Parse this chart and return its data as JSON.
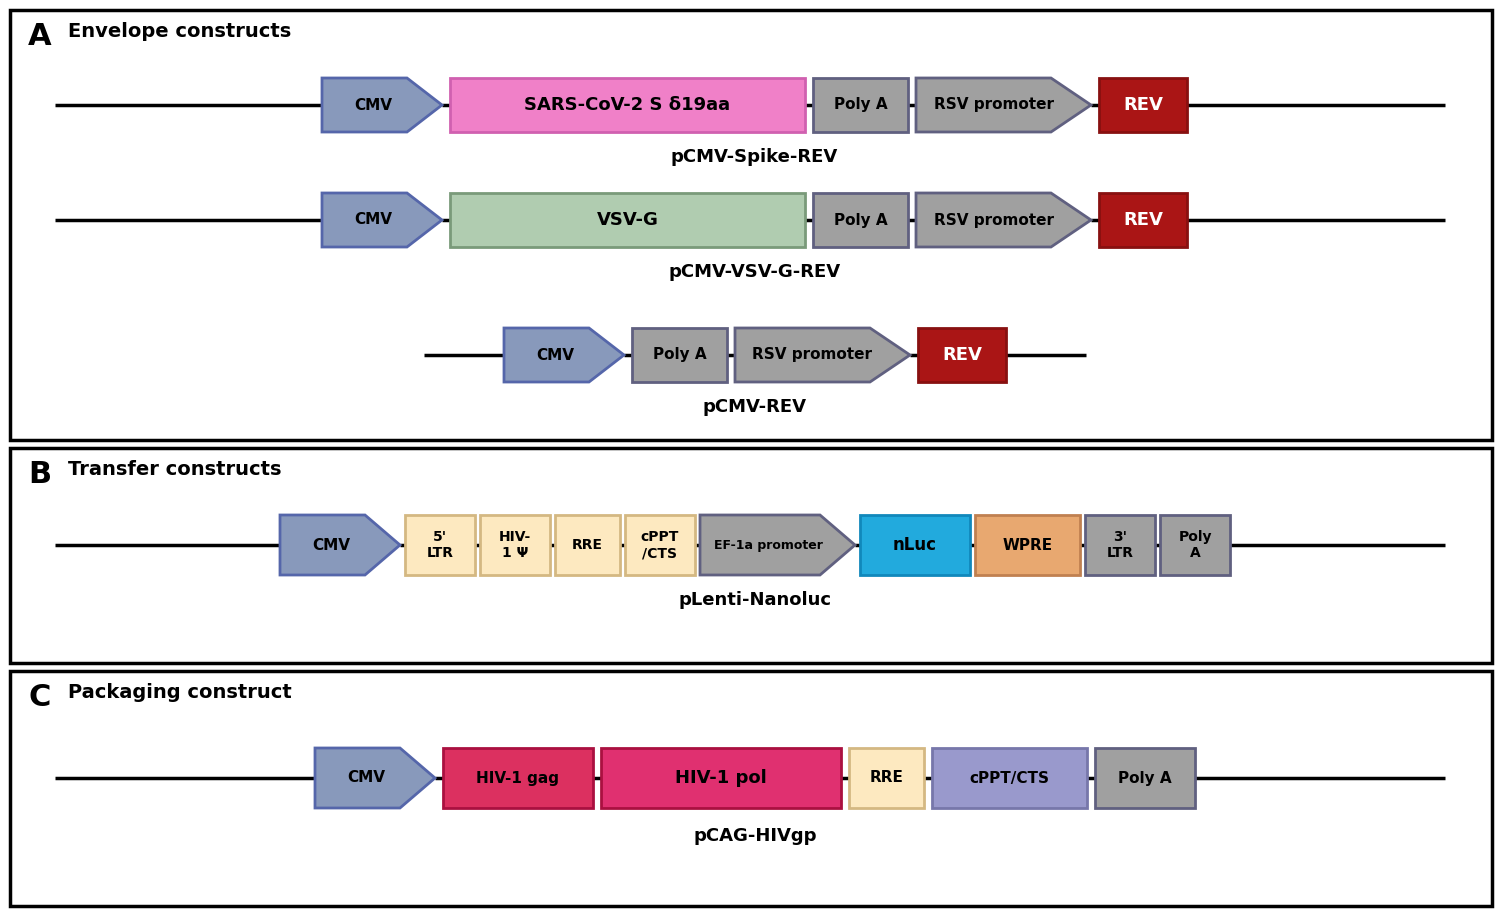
{
  "colors": {
    "gray_box": "#a0a0a0",
    "gray_border": "#606080",
    "cmv_arrow_fill": "#8899bb",
    "cmv_arrow_border": "#5566aa",
    "pink": "#f080c8",
    "pink_border": "#d060b0",
    "green": "#b0ccb0",
    "green_border": "#7a9a7a",
    "dark_red": "#aa1515",
    "dark_red_border": "#881010",
    "light_yellow": "#fde9c0",
    "light_yellow_border": "#d4b882",
    "cyan": "#22aadd",
    "cyan_border": "#1188bb",
    "orange": "#e8a870",
    "orange_border": "#c08050",
    "crimson_gag": "#dc3060",
    "crimson_pol": "#e03070",
    "crimson_border": "#aa1040",
    "lavender": "#9999cc",
    "lavender_border": "#7777aa",
    "bg": "#ffffff"
  },
  "panel_A_label": "A",
  "panel_A_title": "Envelope constructs",
  "panel_B_label": "B",
  "panel_B_title": "Transfer constructs",
  "panel_C_label": "C",
  "panel_C_title": "Packaging construct",
  "row1_label": "pCMV-Spike-REV",
  "row2_label": "pCMV-VSV-G-REV",
  "row3_label": "pCMV-REV",
  "row4_label": "pLenti-Nanoluc",
  "row5_label": "pCAG-HIVgp"
}
